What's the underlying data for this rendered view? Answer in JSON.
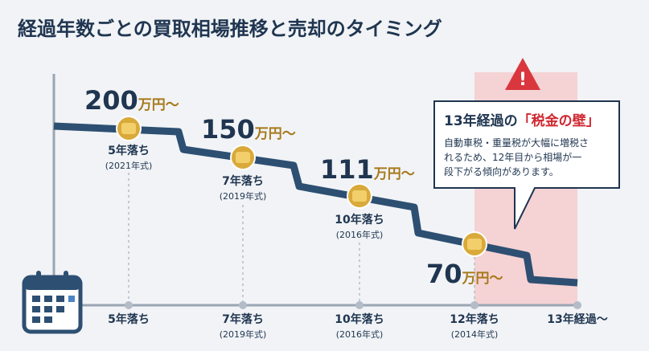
{
  "header": {
    "title": "経過年数ごとの買取相場推移と売却のタイミング"
  },
  "points": [
    {
      "price": "200",
      "unit": "万円〜",
      "label": "5年落ち",
      "year": "(2021年式)"
    },
    {
      "price": "150",
      "unit": "万円〜",
      "label": "7年落ち",
      "year": "(2019年式)"
    },
    {
      "price": "111",
      "unit": "万円〜",
      "label": "10年落ち",
      "year": "(2016年式)"
    },
    {
      "price": "70",
      "unit": "万円〜"
    }
  ],
  "axis": [
    {
      "label": "5年落ち"
    },
    {
      "label": "7年落ち",
      "year": "(2019年式)"
    },
    {
      "label": "10年落ち",
      "year": "(2016年式)"
    },
    {
      "label": "12年落ち",
      "year": "(2014年式)"
    },
    {
      "label": "13年経過〜"
    }
  ],
  "callout": {
    "title": "13年経過の",
    "highlight": "「税金の壁」",
    "lines": [
      "自動車税・重量税が大幅に増税さ",
      "れるため、12年目から相場が一",
      "段下がる傾向があります。"
    ]
  }
}
